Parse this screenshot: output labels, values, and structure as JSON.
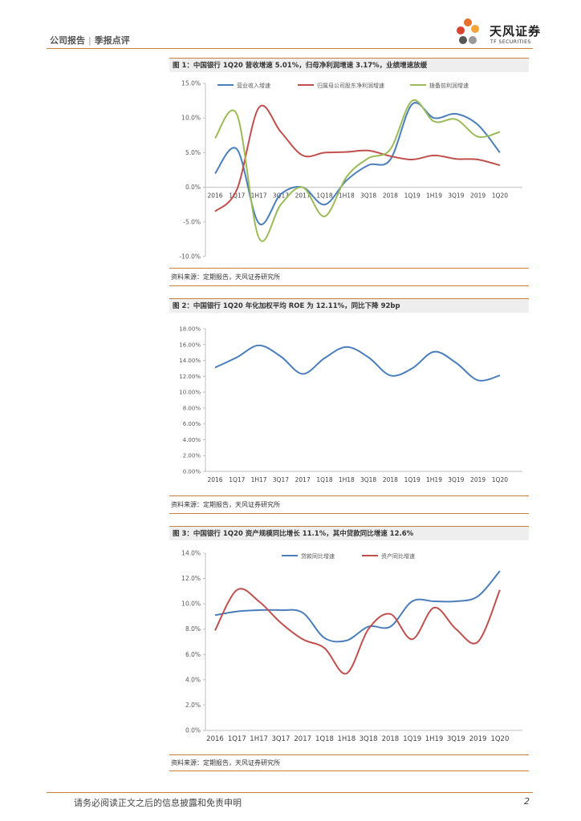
{
  "header": {
    "report_type": "公司报告",
    "separator": "|",
    "report_subtype": "季报点评",
    "logo_brand": "天风证券",
    "logo_sub": "TF SECURITIES",
    "logo_colors": [
      "#e8702a",
      "#d9432e",
      "#f3a33a",
      "#555555",
      "#999999"
    ]
  },
  "figures": [
    {
      "title": "图 1：中国银行 1Q20 营收增速 5.01%，归母净利润增速 3.17%，业绩增速放缓",
      "source": "资料来源：定期报告，天风证券研究所"
    },
    {
      "title": "图 2：中国银行 1Q20 年化加权平均 ROE 为 12.11%，同比下降 92bp",
      "source": "资料来源：定期报告，天风证券研究所"
    },
    {
      "title": "图 3：中国银行 1Q20 资产规模同比增长 11.1%，其中贷款同比增速 12.6%",
      "source": "资料来源：定期报告，天风证券研究所"
    }
  ],
  "chart_data": [
    {
      "type": "line",
      "categories": [
        "2016",
        "1Q17",
        "1H17",
        "3Q17",
        "2017",
        "1Q18",
        "1H18",
        "3Q18",
        "2018",
        "1Q19",
        "1H19",
        "3Q19",
        "2019",
        "1Q20"
      ],
      "series": [
        {
          "name": "营业收入增速",
          "color": "#4a7ebb",
          "values": [
            2.0,
            5.5,
            -5.2,
            -1.0,
            0.0,
            -2.5,
            1.0,
            3.2,
            4.0,
            12.0,
            10.0,
            10.6,
            9.0,
            5.01
          ]
        },
        {
          "name": "归属母公司股东净利润增速",
          "color": "#c0504d",
          "values": [
            -3.5,
            -0.3,
            11.5,
            8.0,
            4.6,
            5.0,
            5.1,
            5.3,
            4.5,
            4.0,
            4.6,
            4.1,
            4.0,
            3.17
          ]
        },
        {
          "name": "拨备前利润增速",
          "color": "#9bbb59",
          "values": [
            7.1,
            10.5,
            -7.3,
            -2.5,
            0.0,
            -4.2,
            1.5,
            4.2,
            5.5,
            12.5,
            9.5,
            9.8,
            7.3,
            8.0
          ]
        }
      ],
      "ylim": [
        -10,
        15
      ],
      "yticks": [
        "-10.0%",
        "-5.0%",
        "0.0%",
        "5.0%",
        "10.0%",
        "15.0%"
      ],
      "ytick_values": [
        -10,
        -5,
        0,
        5,
        10,
        15
      ],
      "legend": "top",
      "xaxis_at_zero": true
    },
    {
      "type": "line",
      "categories": [
        "2016",
        "1Q17",
        "1H17",
        "3Q17",
        "2017",
        "1Q18",
        "1H18",
        "3Q18",
        "2018",
        "1Q19",
        "1H19",
        "3Q19",
        "2019",
        "1Q20"
      ],
      "series": [
        {
          "name": "ROE",
          "color": "#4a7ebb",
          "values": [
            13.1,
            14.4,
            15.9,
            14.5,
            12.3,
            14.3,
            15.7,
            14.4,
            12.1,
            13.0,
            15.1,
            13.7,
            11.5,
            12.11
          ]
        }
      ],
      "ylim": [
        0,
        18
      ],
      "yticks": [
        "0.00%",
        "2.00%",
        "4.00%",
        "6.00%",
        "8.00%",
        "10.00%",
        "12.00%",
        "14.00%",
        "16.00%",
        "18.00%"
      ],
      "ytick_values": [
        0,
        2,
        4,
        6,
        8,
        10,
        12,
        14,
        16,
        18
      ],
      "legend": "none",
      "xaxis_at_zero": false
    },
    {
      "type": "line",
      "categories": [
        "2016",
        "1Q17",
        "1H17",
        "3Q17",
        "2017",
        "1Q18",
        "1H18",
        "3Q18",
        "2018",
        "1Q19",
        "1H19",
        "3Q19",
        "2019",
        "1Q20"
      ],
      "series": [
        {
          "name": "贷款同比增速",
          "color": "#4a7ebb",
          "values": [
            9.1,
            9.4,
            9.5,
            9.5,
            9.3,
            7.3,
            7.1,
            8.2,
            8.2,
            10.2,
            10.2,
            10.2,
            10.6,
            12.6
          ]
        },
        {
          "name": "资产同比增速",
          "color": "#c0504d",
          "values": [
            7.9,
            11.1,
            10.2,
            8.5,
            7.2,
            6.5,
            4.5,
            8.0,
            9.2,
            7.2,
            9.7,
            8.0,
            7.0,
            11.1
          ]
        }
      ],
      "ylim": [
        0,
        14
      ],
      "yticks": [
        "0.0%",
        "2.0%",
        "4.0%",
        "6.0%",
        "8.0%",
        "10.0%",
        "12.0%",
        "14.0%"
      ],
      "ytick_values": [
        0,
        2,
        4,
        6,
        8,
        10,
        12,
        14
      ],
      "legend": "top",
      "xaxis_at_zero": false
    }
  ],
  "footer": {
    "disclaimer": "请务必阅读正文之后的信息披露和免责申明",
    "page": "2"
  }
}
